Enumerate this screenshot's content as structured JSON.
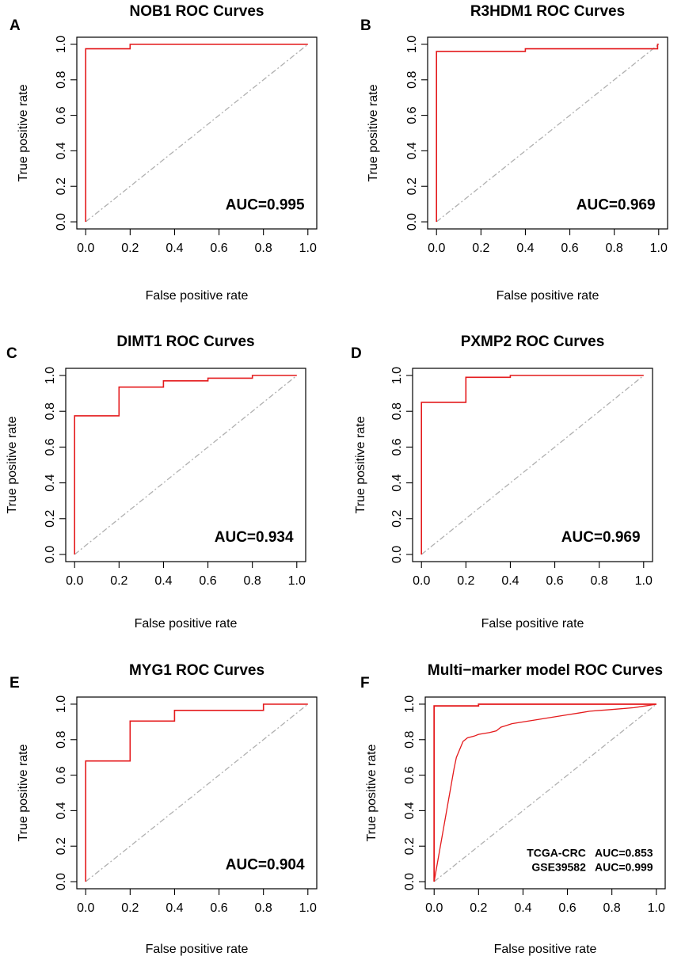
{
  "colors": {
    "roc": "#e41a1c",
    "diagonal": "#b0b0b0",
    "axis": "#000000"
  },
  "chart_data": [
    {
      "type": "line",
      "panel_label": "A",
      "title": "NOB1 ROC Curves",
      "xlabel": "False positive rate",
      "ylabel": "True positive rate",
      "xlim": [
        0,
        1
      ],
      "ylim": [
        0,
        1
      ],
      "xticks": [
        "0.0",
        "0.2",
        "0.4",
        "0.6",
        "0.8",
        "1.0"
      ],
      "yticks": [
        "0.0",
        "0.2",
        "0.4",
        "0.6",
        "0.8",
        "1.0"
      ],
      "series": [
        {
          "name": "ROC",
          "x": [
            0,
            0,
            0.2,
            0.2,
            1
          ],
          "y": [
            0,
            0.975,
            0.975,
            1,
            1
          ]
        }
      ],
      "annotations": [
        "AUC=0.995"
      ]
    },
    {
      "type": "line",
      "panel_label": "B",
      "title": "R3HDM1 ROC Curves",
      "xlabel": "False positive rate",
      "ylabel": "True positive rate",
      "xlim": [
        0,
        1
      ],
      "ylim": [
        0,
        1
      ],
      "xticks": [
        "0.0",
        "0.2",
        "0.4",
        "0.6",
        "0.8",
        "1.0"
      ],
      "yticks": [
        "0.0",
        "0.2",
        "0.4",
        "0.6",
        "0.8",
        "1.0"
      ],
      "series": [
        {
          "name": "ROC",
          "x": [
            0,
            0,
            0.4,
            0.4,
            0.995,
            0.995,
            1
          ],
          "y": [
            0,
            0.96,
            0.96,
            0.975,
            0.975,
            1,
            1
          ]
        }
      ],
      "annotations": [
        "AUC=0.969"
      ]
    },
    {
      "type": "line",
      "panel_label": "C",
      "title": "DIMT1 ROC Curves",
      "xlabel": "False positive rate",
      "ylabel": "True positive rate",
      "xlim": [
        0,
        1
      ],
      "ylim": [
        0,
        1
      ],
      "xticks": [
        "0.0",
        "0.2",
        "0.4",
        "0.6",
        "0.8",
        "1.0"
      ],
      "yticks": [
        "0.0",
        "0.2",
        "0.4",
        "0.6",
        "0.8",
        "1.0"
      ],
      "series": [
        {
          "name": "ROC",
          "x": [
            0,
            0,
            0.2,
            0.2,
            0.4,
            0.4,
            0.6,
            0.6,
            0.8,
            0.8,
            1
          ],
          "y": [
            0,
            0.775,
            0.775,
            0.935,
            0.935,
            0.97,
            0.97,
            0.985,
            0.985,
            1,
            1
          ]
        }
      ],
      "annotations": [
        "AUC=0.934"
      ]
    },
    {
      "type": "line",
      "panel_label": "D",
      "title": "PXMP2 ROC Curves",
      "xlabel": "False positive rate",
      "ylabel": "True positive rate",
      "xlim": [
        0,
        1
      ],
      "ylim": [
        0,
        1
      ],
      "xticks": [
        "0.0",
        "0.2",
        "0.4",
        "0.6",
        "0.8",
        "1.0"
      ],
      "yticks": [
        "0.0",
        "0.2",
        "0.4",
        "0.6",
        "0.8",
        "1.0"
      ],
      "series": [
        {
          "name": "ROC",
          "x": [
            0,
            0,
            0.2,
            0.2,
            0.4,
            0.4,
            1
          ],
          "y": [
            0,
            0.85,
            0.85,
            0.99,
            0.99,
            1,
            1
          ]
        }
      ],
      "annotations": [
        "AUC=0.969"
      ]
    },
    {
      "type": "line",
      "panel_label": "E",
      "title": "MYG1 ROC Curves",
      "xlabel": "False positive rate",
      "ylabel": "True positive rate",
      "xlim": [
        0,
        1
      ],
      "ylim": [
        0,
        1
      ],
      "xticks": [
        "0.0",
        "0.2",
        "0.4",
        "0.6",
        "0.8",
        "1.0"
      ],
      "yticks": [
        "0.0",
        "0.2",
        "0.4",
        "0.6",
        "0.8",
        "1.0"
      ],
      "series": [
        {
          "name": "ROC",
          "x": [
            0,
            0,
            0.2,
            0.2,
            0.4,
            0.4,
            0.8,
            0.8,
            1
          ],
          "y": [
            0,
            0.68,
            0.68,
            0.905,
            0.905,
            0.965,
            0.965,
            1,
            1
          ]
        }
      ],
      "annotations": [
        "AUC=0.904"
      ]
    },
    {
      "type": "line",
      "panel_label": "F",
      "title": "Multi−marker model ROC Curves",
      "xlabel": "False positive rate",
      "ylabel": "True positive rate",
      "xlim": [
        0,
        1
      ],
      "ylim": [
        0,
        1
      ],
      "xticks": [
        "0.0",
        "0.2",
        "0.4",
        "0.6",
        "0.8",
        "1.0"
      ],
      "yticks": [
        "0.0",
        "0.2",
        "0.4",
        "0.6",
        "0.8",
        "1.0"
      ],
      "series": [
        {
          "name": "GSE39582",
          "x": [
            0,
            0,
            0.2,
            0.2,
            1
          ],
          "y": [
            0,
            0.99,
            0.99,
            1,
            1
          ]
        },
        {
          "name": "TCGA-CRC",
          "x": [
            0,
            0.09,
            0.09,
            0.1,
            0.1,
            0.11,
            0.11,
            0.12,
            0.12,
            0.13,
            0.13,
            0.15,
            0.15,
            0.18,
            0.18,
            0.2,
            0.2,
            0.25,
            0.25,
            0.28,
            0.28,
            0.3,
            0.3,
            0.35,
            0.35,
            0.4,
            0.4,
            0.45,
            0.45,
            0.5,
            0.5,
            0.55,
            0.55,
            0.6,
            0.6,
            0.65,
            0.65,
            0.7,
            0.7,
            0.8,
            0.8,
            0.9,
            0.9,
            0.95,
            0.95,
            1
          ],
          "y": [
            0,
            0.64,
            0.64,
            0.7,
            0.7,
            0.73,
            0.73,
            0.76,
            0.76,
            0.79,
            0.79,
            0.81,
            0.81,
            0.82,
            0.82,
            0.83,
            0.83,
            0.84,
            0.84,
            0.85,
            0.85,
            0.87,
            0.87,
            0.89,
            0.89,
            0.9,
            0.9,
            0.91,
            0.91,
            0.92,
            0.92,
            0.93,
            0.93,
            0.94,
            0.94,
            0.95,
            0.95,
            0.96,
            0.96,
            0.97,
            0.97,
            0.98,
            0.98,
            0.99,
            0.99,
            1
          ]
        }
      ],
      "annotations": [
        "TCGA-CRC   AUC=0.853",
        "GSE39582   AUC=0.999"
      ]
    }
  ]
}
